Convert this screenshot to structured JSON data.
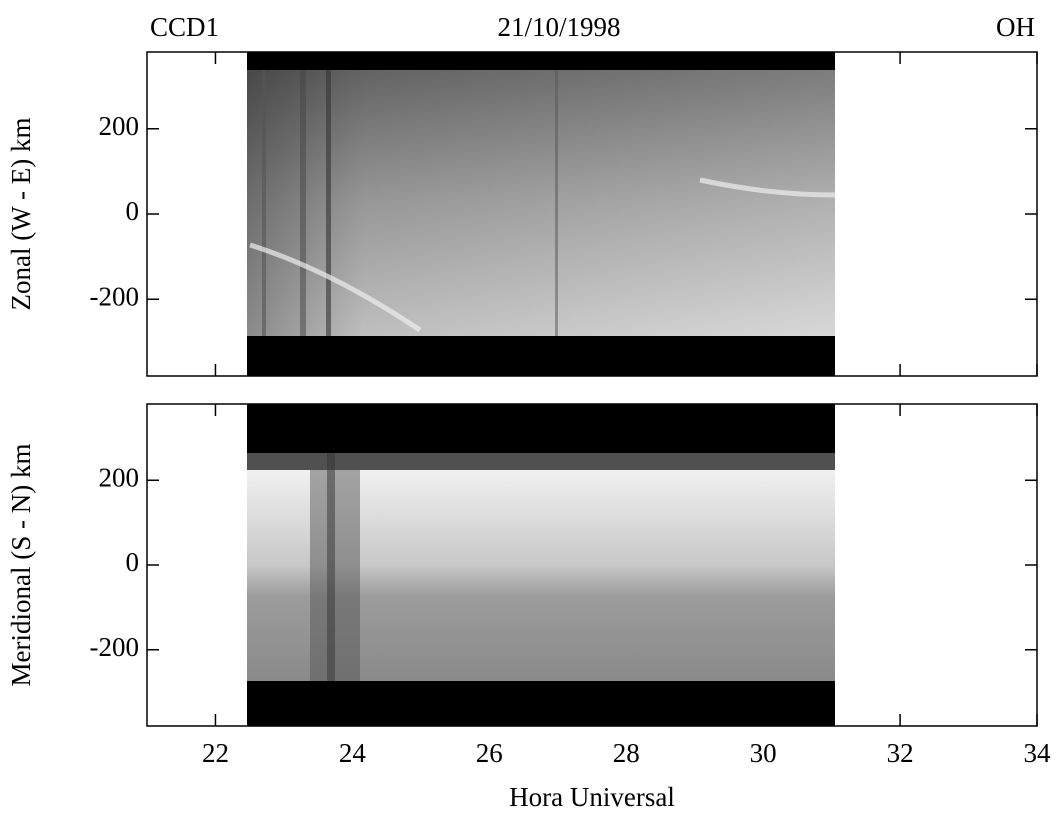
{
  "chart_data": [
    {
      "type": "image",
      "title_left": "CCD1",
      "title": "21/10/1998",
      "title_right": "OH",
      "ylabel": "Zonal (W - E) km",
      "xlim": [
        21,
        34
      ],
      "xticks": [
        22,
        24,
        26,
        28,
        30,
        32,
        34
      ],
      "ylim": [
        -380,
        380
      ],
      "yticks": [
        -200,
        0,
        200
      ]
    },
    {
      "type": "image",
      "ylabel": "Meridional (S - N) km",
      "xlabel": "Hora Universal",
      "xlim": [
        21,
        34
      ],
      "xticks": [
        22,
        24,
        26,
        28,
        30,
        32,
        34
      ],
      "ylim": [
        -380,
        380
      ],
      "yticks": [
        -200,
        0,
        200
      ]
    }
  ]
}
